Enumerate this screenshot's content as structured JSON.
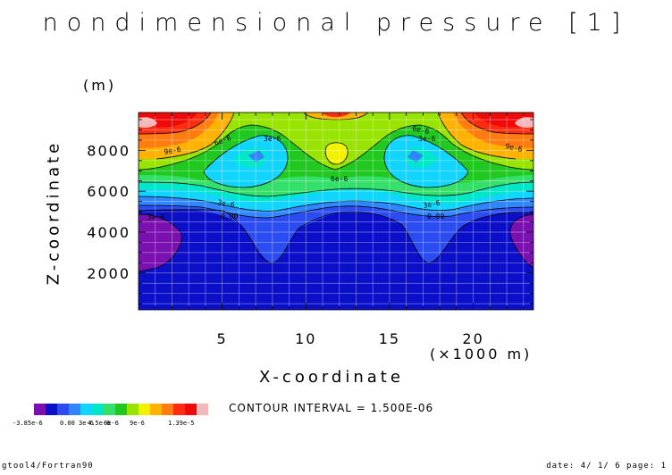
{
  "chart_data": {
    "type": "heatmap",
    "title": "nondimensional pressure [1]",
    "xlabel": "X-coordinate",
    "x_unit_label": "(×1000 m)",
    "ylabel": "Z-coordinate",
    "y_unit_label": "(m)",
    "xlim": [
      0,
      23.6
    ],
    "ylim": [
      200,
      9850
    ],
    "x_ticks": [
      "5",
      "10",
      "15",
      "20"
    ],
    "y_ticks": [
      "2000",
      "4000",
      "6000",
      "8000"
    ],
    "contour_interval_text": "CONTOUR INTERVAL = 1.500E-06",
    "colorbar": {
      "min_label": "-3.85e-6",
      "max_label": "1.39e-5",
      "mid_labels": [
        "0.00",
        "3e-6",
        "4.5e-6",
        "6e-6",
        "9e-6"
      ],
      "colors": [
        "#7b10b0",
        "#0b0fc8",
        "#2a4cf0",
        "#2f86ff",
        "#11d5ff",
        "#00e7c8",
        "#34e06a",
        "#20c820",
        "#98e400",
        "#f2f200",
        "#ffb200",
        "#ff7c10",
        "#ff2c10",
        "#ee0a0a",
        "#f5b8b8"
      ]
    },
    "contour_labels": [
      "3e-6",
      "6e-6",
      "9e-6",
      "0.00"
    ],
    "grid": true
  },
  "footer": {
    "left": "gtool4/Fortran90",
    "right": "date: 4/ 1/ 6 page: 1"
  }
}
